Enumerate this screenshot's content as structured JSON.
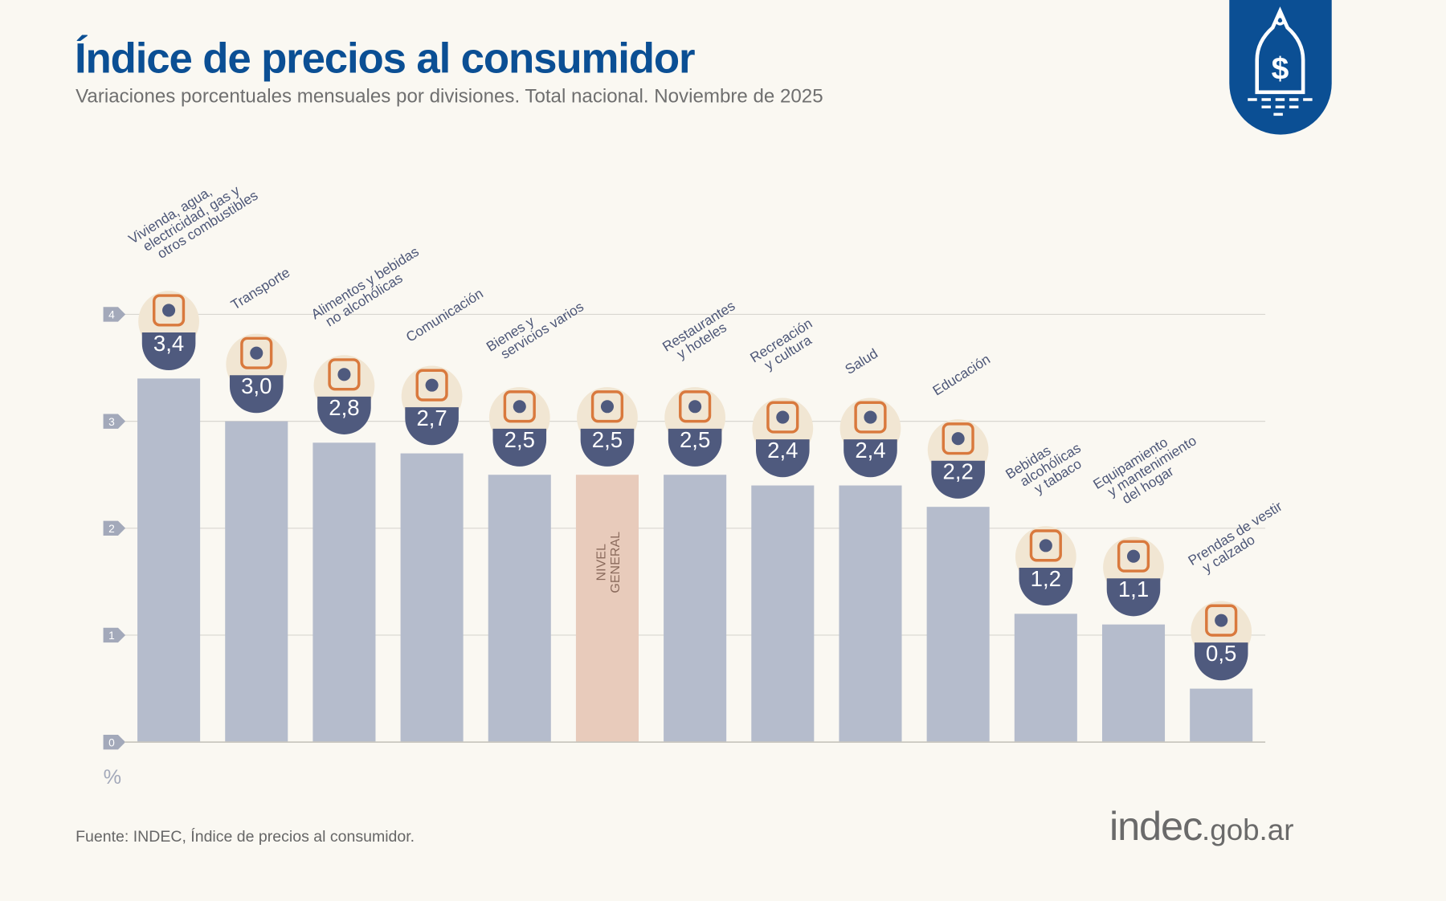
{
  "header": {
    "title": "Índice de precios al consumidor",
    "subtitle": "Variaciones porcentuales mensuales por divisiones. Total nacional. Noviembre de 2025"
  },
  "footer": {
    "source": "Fuente: INDEC, Índice de precios al consumidor.",
    "logo_main": "indec",
    "logo_suffix": ".gob.ar"
  },
  "chart_data": {
    "type": "bar",
    "ylabel": "%",
    "ylim": [
      0,
      4
    ],
    "yticks": [
      "0",
      "1",
      "2",
      "3",
      "4"
    ],
    "grid": true,
    "categories": [
      "Vivienda, agua, electricidad, gas y otros combustibles",
      "Transporte",
      "Alimentos y bebidas no alcohólicas",
      "Comunicación",
      "Bienes y servicios varios",
      "NIVEL GENERAL",
      "Restaurantes y hoteles",
      "Recreación y cultura",
      "Salud",
      "Educación",
      "Bebidas alcohólicas y tabaco",
      "Equipamiento y mantenimiento del hogar",
      "Prendas de vestir y calzado"
    ],
    "label_lines": [
      [
        "Vivienda, agua,",
        "electricidad, gas y",
        "otros combustibles"
      ],
      [
        "Transporte"
      ],
      [
        "Alimentos y bebidas",
        "no alcohólicas"
      ],
      [
        "Comunicación"
      ],
      [
        "Bienes y",
        "servicios varios"
      ],
      [
        "NIVEL",
        "GENERAL"
      ],
      [
        "Restaurantes",
        "y hoteles"
      ],
      [
        "Recreación",
        "y cultura"
      ],
      [
        "Salud"
      ],
      [
        "Educación"
      ],
      [
        "Bebidas",
        "alcohólicas",
        "y tabaco"
      ],
      [
        "Equipamiento",
        "y mantenimiento",
        "del hogar"
      ],
      [
        "Prendas de vestir",
        "y calzado"
      ]
    ],
    "values": [
      3.4,
      3.0,
      2.8,
      2.7,
      2.5,
      2.5,
      2.5,
      2.4,
      2.4,
      2.2,
      1.2,
      1.1,
      0.5
    ],
    "value_labels": [
      "3,4",
      "3,0",
      "2,8",
      "2,7",
      "2,5",
      "2,5",
      "2,5",
      "2,4",
      "2,4",
      "2,2",
      "1,2",
      "1,1",
      "0,5"
    ],
    "icons": [
      "lightbulb-tools-icon",
      "bus-card-icon",
      "food-icon",
      "phone-icon",
      "comb-scissors-icon",
      "shopping-bag-icon",
      "plate-cutlery-icon",
      "umbrella-icon",
      "health-cross-icon",
      "notebook-icon",
      "wine-icon",
      "air-conditioner-icon",
      "tshirt-icon"
    ],
    "highlight_index": 5,
    "colors": {
      "bar": "#b5bccc",
      "highlight": "#e8cbbb",
      "badge": "#4f5a7e",
      "icon_bg": "#f1e6d3",
      "icon": "#d9793d",
      "grid": "#d8d6d0",
      "title": "#0b4f94"
    }
  }
}
